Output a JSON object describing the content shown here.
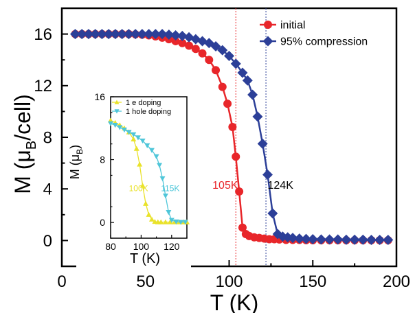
{
  "chart_data": [
    {
      "type": "line",
      "xlabel": "T (K)",
      "ylabel_main": "M (",
      "ylabel_mu": "μ",
      "ylabel_sub": "B",
      "ylabel_tail": "/cell)",
      "xlim": [
        0,
        200
      ],
      "ylim": [
        -2,
        18
      ],
      "xticks": [
        0,
        50,
        100,
        150,
        200
      ],
      "yticks": [
        0,
        4,
        8,
        12,
        16
      ],
      "grid": false,
      "legend_position": "top-right",
      "series": [
        {
          "name": "initial",
          "color": "#e8262a",
          "marker": "circle",
          "x": [
            8,
            12,
            16,
            20,
            24,
            28,
            32,
            36,
            40,
            44,
            48,
            52,
            56,
            60,
            64,
            68,
            72,
            76,
            80,
            84,
            88,
            92,
            96,
            99,
            102,
            104,
            106,
            108,
            110,
            112,
            115,
            118,
            121,
            124,
            127,
            130,
            134,
            138,
            142,
            146,
            150,
            155,
            160,
            165,
            170,
            175,
            180,
            185,
            190,
            195
          ],
          "y": [
            16,
            16,
            16,
            16,
            16,
            16,
            16,
            16,
            16,
            15.98,
            15.95,
            15.9,
            15.82,
            15.72,
            15.6,
            15.45,
            15.3,
            15.1,
            14.85,
            14.5,
            14.0,
            13.2,
            11.9,
            10.6,
            8.8,
            6.5,
            3.8,
            1.0,
            0.5,
            0.35,
            0.25,
            0.2,
            0.15,
            0.1,
            0.1,
            0.08,
            0.05,
            0.05,
            0.05,
            0.03,
            0.02,
            0.02,
            0.02,
            0.02,
            0.02,
            0.02,
            0.02,
            0.02,
            0.02,
            0.02
          ]
        },
        {
          "name": "95% compression",
          "color": "#2c3f98",
          "marker": "diamond",
          "x": [
            8,
            12,
            16,
            20,
            24,
            28,
            32,
            36,
            40,
            44,
            48,
            52,
            56,
            60,
            64,
            68,
            72,
            76,
            80,
            84,
            88,
            92,
            96,
            100,
            104,
            108,
            111,
            114,
            117,
            120,
            123,
            126,
            129,
            132,
            135,
            138,
            142,
            146,
            150,
            155,
            160,
            165,
            170,
            175,
            180,
            185,
            190,
            195
          ],
          "y": [
            16,
            16,
            16,
            16,
            16,
            16,
            16,
            16,
            16,
            16,
            16,
            16,
            16,
            16,
            15.95,
            15.9,
            15.85,
            15.75,
            15.6,
            15.45,
            15.3,
            15.05,
            14.75,
            14.3,
            13.7,
            13.0,
            12.4,
            11.3,
            9.6,
            7.5,
            5.1,
            2.1,
            0.5,
            0.3,
            0.25,
            0.2,
            0.15,
            0.12,
            0.1,
            0.08,
            0.08,
            0.08,
            0.06,
            0.06,
            0.06,
            0.05,
            0.05,
            0.05
          ]
        }
      ],
      "reference_lines": [
        {
          "x": 104,
          "color": "#e8262a"
        },
        {
          "x": 122,
          "color": "#2c3f98"
        }
      ],
      "annotations": [
        {
          "text": "105K",
          "x": 90,
          "y": 4.0,
          "color": "#e8262a"
        },
        {
          "text": "124K",
          "x": 123,
          "y": 4.0,
          "color": "#000000"
        }
      ]
    },
    {
      "type": "line",
      "xlabel": "T (K)",
      "ylabel_main": "M (",
      "ylabel_mu": "μ",
      "ylabel_sub": "B",
      "ylabel_tail": ")",
      "xlim": [
        80,
        130
      ],
      "ylim": [
        -2,
        16
      ],
      "xticks": [
        80,
        100,
        120
      ],
      "yticks": [
        0,
        8,
        16
      ],
      "legend_position": "top-left",
      "series": [
        {
          "name": "1 e doping",
          "color": "#e9e22a",
          "marker": "triangle-up",
          "x": [
            80,
            83,
            86,
            89,
            92,
            95,
            97,
            99,
            101,
            103,
            105,
            107,
            109,
            111,
            113,
            116,
            119,
            122,
            125,
            128,
            130
          ],
          "y": [
            13,
            12.7,
            12.4,
            12.0,
            11.5,
            10.6,
            9.4,
            7.4,
            4.7,
            2.4,
            1.0,
            0.4,
            0.1,
            0.05,
            0.05,
            0.05,
            0.05,
            0.05,
            0.05,
            0.05,
            0.05
          ]
        },
        {
          "name": "1 hole doping",
          "color": "#4fc6d9",
          "marker": "triangle-down",
          "x": [
            80,
            83,
            86,
            89,
            92,
            95,
            98,
            101,
            104,
            107,
            110,
            112,
            114,
            116,
            118,
            120,
            123,
            126,
            129
          ],
          "y": [
            12.6,
            12.4,
            12.1,
            11.8,
            11.5,
            11.2,
            10.8,
            10.4,
            9.8,
            9.2,
            8.4,
            7.3,
            5.6,
            3.4,
            1.3,
            0.3,
            0.1,
            0.05,
            0.05
          ]
        }
      ],
      "annotations": [
        {
          "text": "100K",
          "x": 92,
          "y": 4.0,
          "color": "#e9e22a"
        },
        {
          "text": "115K",
          "x": 113,
          "y": 4.0,
          "color": "#4fc6d9"
        }
      ]
    }
  ]
}
